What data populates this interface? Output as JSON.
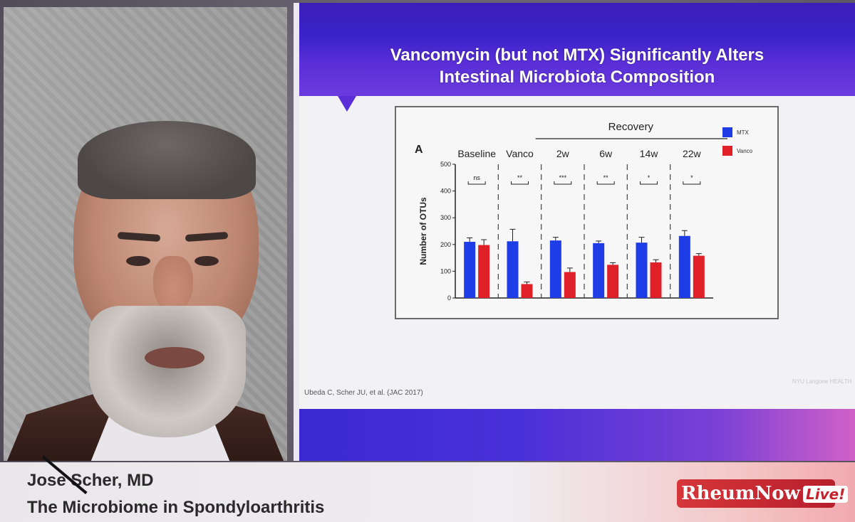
{
  "slide": {
    "title_line1": "Vancomycin (but not MTX) Significantly Alters",
    "title_line2": "Intestinal Microbiota Composition",
    "citation": "Ubeda C, Scher JU, et al. (JAC 2017)",
    "faint_logo": "NYU Langone HEALTH"
  },
  "speaker": {
    "name": "Jose Scher, MD",
    "talk": "The Microbiome in Spondyloarthritis"
  },
  "logo": {
    "text": "RheumNow",
    "live": "Live!"
  },
  "chart_data": {
    "type": "bar",
    "panel_label": "A",
    "group_header": "Recovery",
    "categories": [
      "Baseline",
      "Vanco",
      "2w",
      "6w",
      "14w",
      "22w"
    ],
    "ylabel": "Number of OTUs",
    "ylim": [
      0,
      500
    ],
    "yticks": [
      0,
      100,
      200,
      300,
      400,
      500
    ],
    "series": [
      {
        "name": "MTX",
        "color": "#1e3de6",
        "values": [
          210,
          212,
          215,
          205,
          207,
          232
        ],
        "errors": [
          15,
          45,
          12,
          8,
          20,
          20
        ]
      },
      {
        "name": "Vanco",
        "color": "#e02028",
        "values": [
          198,
          52,
          97,
          124,
          133,
          158
        ],
        "errors": [
          20,
          8,
          15,
          8,
          10,
          8
        ]
      }
    ],
    "significance": [
      "ns",
      "**",
      "***",
      "**",
      "*",
      "*"
    ],
    "legend_position": "right"
  }
}
